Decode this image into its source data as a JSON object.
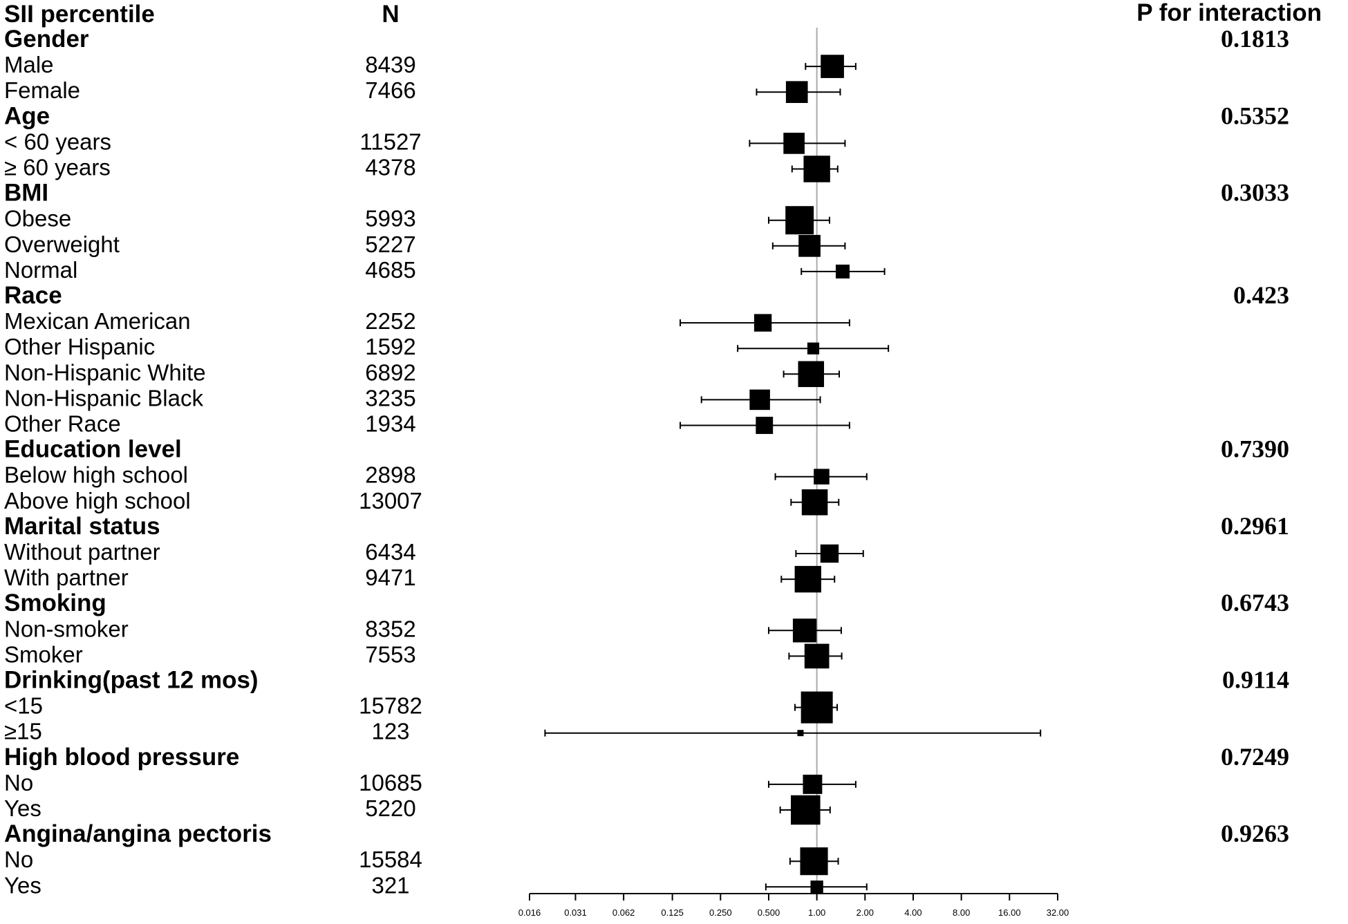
{
  "chart_data": {
    "type": "forest",
    "title": "",
    "columns": {
      "label": "SII percentile",
      "n": "N",
      "p": "P for interaction"
    },
    "xscale": "log2",
    "xlim": [
      0.016,
      32
    ],
    "reference_line": 1.0,
    "x_ticks": [
      "0.016",
      "0.031",
      "0.062",
      "0.125",
      "0.250",
      "0.500",
      "1.00",
      "2.00",
      "4.00",
      "8.00",
      "16.00",
      "32.00"
    ],
    "rows": [
      {
        "kind": "group",
        "label": "Gender",
        "p": "0.1813"
      },
      {
        "kind": "sub",
        "label": "Male",
        "n": "8439",
        "est": 1.25,
        "lo": 0.85,
        "hi": 1.75,
        "weight": 8439
      },
      {
        "kind": "sub",
        "label": "Female",
        "n": "7466",
        "est": 0.75,
        "lo": 0.42,
        "hi": 1.4,
        "weight": 7466
      },
      {
        "kind": "group",
        "label": "Age",
        "p": "0.5352"
      },
      {
        "kind": "sub",
        "label": "< 60 years",
        "n": "11527",
        "est": 0.72,
        "lo": 0.38,
        "hi": 1.5,
        "weight": 7000
      },
      {
        "kind": "sub",
        "label": "≥ 60 years",
        "n": "4378",
        "est": 1.0,
        "lo": 0.7,
        "hi": 1.35,
        "weight": 11000
      },
      {
        "kind": "group",
        "label": "BMI",
        "p": "0.3033"
      },
      {
        "kind": "sub",
        "label": "Obese",
        "n": "5993",
        "est": 0.78,
        "lo": 0.5,
        "hi": 1.2,
        "weight": 12500
      },
      {
        "kind": "sub",
        "label": "Overweight",
        "n": "5227",
        "est": 0.9,
        "lo": 0.53,
        "hi": 1.5,
        "weight": 7500
      },
      {
        "kind": "sub",
        "label": "Normal",
        "n": "4685",
        "est": 1.45,
        "lo": 0.8,
        "hi": 2.65,
        "weight": 3000
      },
      {
        "kind": "group",
        "label": "Race",
        "p": "0.423"
      },
      {
        "kind": "sub",
        "label": "Mexican American",
        "n": "2252",
        "est": 0.46,
        "lo": 0.14,
        "hi": 1.6,
        "weight": 4800
      },
      {
        "kind": "sub",
        "label": "Other Hispanic",
        "n": "1592",
        "est": 0.95,
        "lo": 0.32,
        "hi": 2.8,
        "weight": 2200
      },
      {
        "kind": "sub",
        "label": "Non-Hispanic White",
        "n": "6892",
        "est": 0.92,
        "lo": 0.62,
        "hi": 1.38,
        "weight": 10500
      },
      {
        "kind": "sub",
        "label": "Non-Hispanic Black",
        "n": "3235",
        "est": 0.44,
        "lo": 0.19,
        "hi": 1.05,
        "weight": 6500
      },
      {
        "kind": "sub",
        "label": "Other Race",
        "n": "1934",
        "est": 0.47,
        "lo": 0.14,
        "hi": 1.6,
        "weight": 4600
      },
      {
        "kind": "group",
        "label": "Education level",
        "p": "0.7390"
      },
      {
        "kind": "sub",
        "label": "Below high school",
        "n": "2898",
        "est": 1.07,
        "lo": 0.55,
        "hi": 2.05,
        "weight": 3800
      },
      {
        "kind": "sub",
        "label": "Above high school",
        "n": "13007",
        "est": 0.97,
        "lo": 0.69,
        "hi": 1.37,
        "weight": 10500
      },
      {
        "kind": "group",
        "label": "Marital status",
        "p": "0.2961"
      },
      {
        "kind": "sub",
        "label": "Without partner",
        "n": "6434",
        "est": 1.2,
        "lo": 0.74,
        "hi": 1.95,
        "weight": 5200
      },
      {
        "kind": "sub",
        "label": "With partner",
        "n": "9471",
        "est": 0.88,
        "lo": 0.6,
        "hi": 1.29,
        "weight": 11000
      },
      {
        "kind": "group",
        "label": "Smoking",
        "p": "0.6743"
      },
      {
        "kind": "sub",
        "label": "Non-smoker",
        "n": "8352",
        "est": 0.84,
        "lo": 0.5,
        "hi": 1.42,
        "weight": 8800
      },
      {
        "kind": "sub",
        "label": "Smoker",
        "n": "7553",
        "est": 1.0,
        "lo": 0.67,
        "hi": 1.43,
        "weight": 9500
      },
      {
        "kind": "group",
        "label": "Drinking(past 12 mos)",
        "p": "0.9114"
      },
      {
        "kind": "sub",
        "label": "<15",
        "n": "15782",
        "est": 1.0,
        "lo": 0.73,
        "hi": 1.34,
        "weight": 15782
      },
      {
        "kind": "sub",
        "label": "≥15",
        "n": "123",
        "est": 0.79,
        "lo": 0.02,
        "hi": 25,
        "weight": 120
      },
      {
        "kind": "group",
        "label": "High blood pressure",
        "p": "0.7249"
      },
      {
        "kind": "sub",
        "label": "No",
        "n": "10685",
        "est": 0.94,
        "lo": 0.5,
        "hi": 1.75,
        "weight": 5800
      },
      {
        "kind": "sub",
        "label": "Yes",
        "n": "5220",
        "est": 0.85,
        "lo": 0.59,
        "hi": 1.21,
        "weight": 13500
      },
      {
        "kind": "group",
        "label": "Angina/angina pectoris",
        "p": "0.9263"
      },
      {
        "kind": "sub",
        "label": "No",
        "n": "15584",
        "est": 0.96,
        "lo": 0.68,
        "hi": 1.36,
        "weight": 12000
      },
      {
        "kind": "sub",
        "label": "Yes",
        "n": "321",
        "est": 1.0,
        "lo": 0.48,
        "hi": 2.05,
        "weight": 2500
      }
    ]
  }
}
